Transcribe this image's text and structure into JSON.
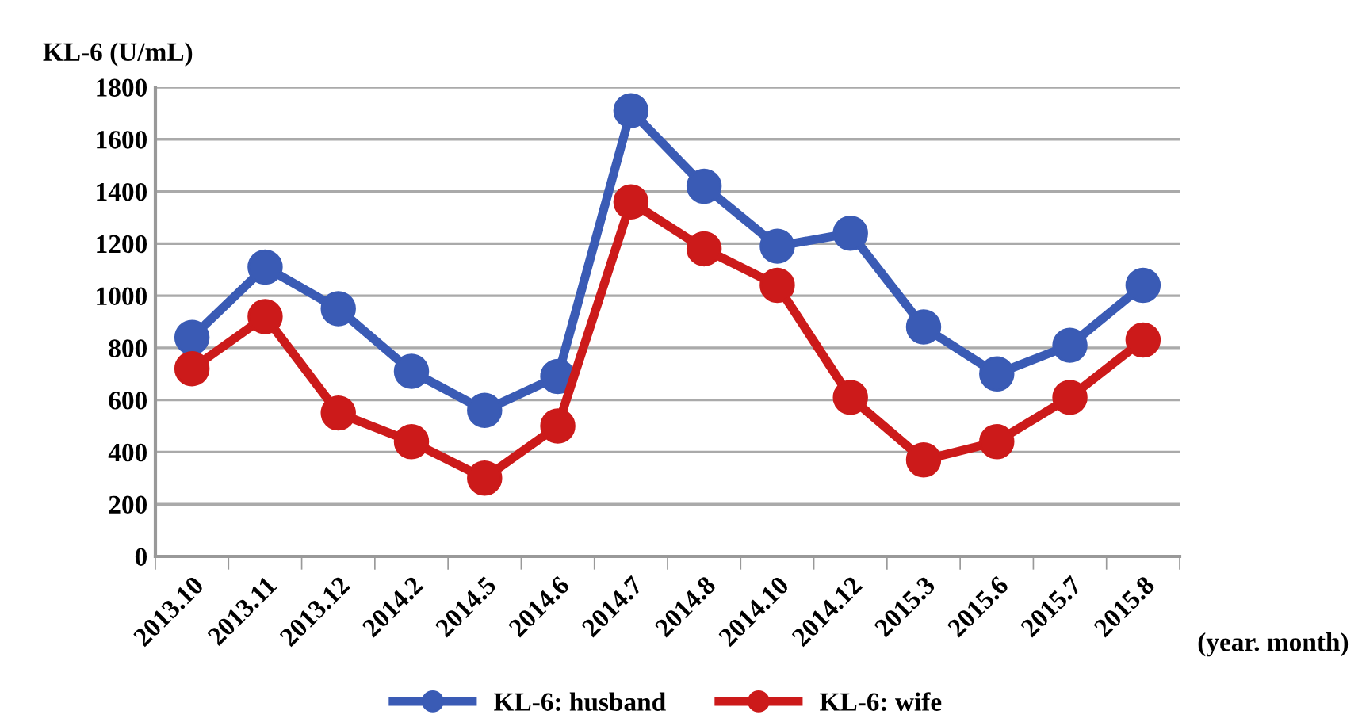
{
  "chart_data": {
    "type": "line",
    "ylabel": "KL-6 (U/mL)",
    "xlabel": "(year. month)",
    "categories": [
      "2013.10",
      "2013.11",
      "2013.12",
      "2014.2",
      "2014.5",
      "2014.6",
      "2014.7",
      "2014.8",
      "2014.10",
      "2014.12",
      "2015.3",
      "2015.6",
      "2015.7",
      "2015.8"
    ],
    "series": [
      {
        "name": "KL-6: husband",
        "color": "#3a5bb5",
        "values": [
          840,
          1110,
          950,
          710,
          560,
          690,
          1710,
          1420,
          1190,
          1240,
          880,
          700,
          810,
          1040
        ]
      },
      {
        "name": "KL-6: wife",
        "color": "#cc1a1a",
        "values": [
          720,
          920,
          550,
          440,
          300,
          500,
          1360,
          1180,
          1040,
          610,
          370,
          440,
          610,
          830
        ]
      }
    ],
    "ylim": [
      0,
      1800
    ],
    "yticks": [
      0,
      200,
      400,
      600,
      800,
      1000,
      1200,
      1400,
      1600,
      1800
    ],
    "grid": "y",
    "legend": "bottom",
    "marker": "circle",
    "line_style": "solid"
  }
}
